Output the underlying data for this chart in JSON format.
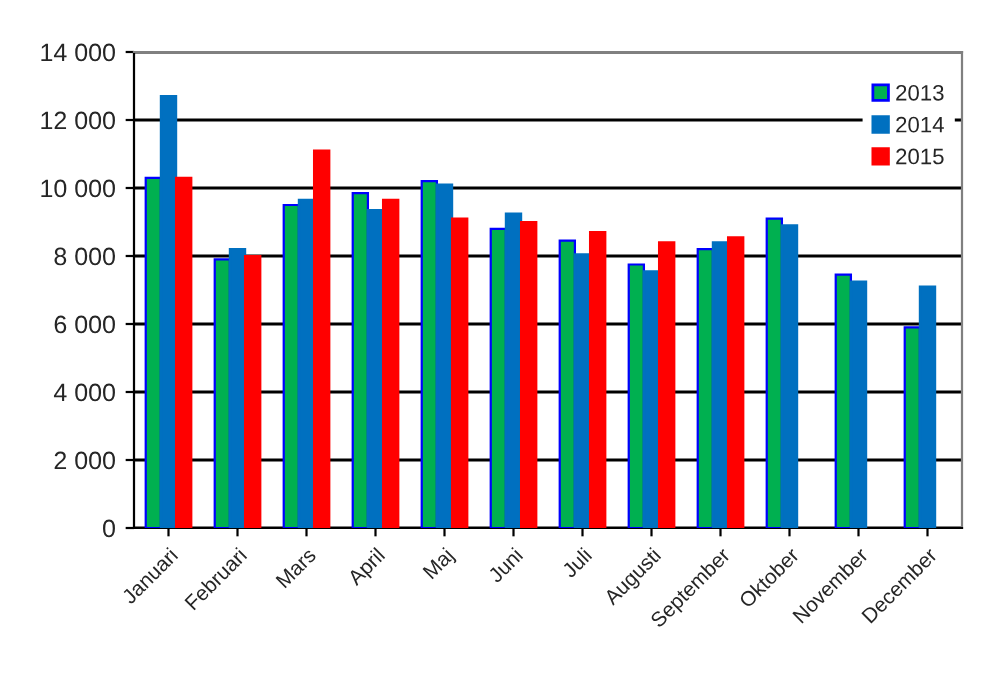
{
  "chart_data": {
    "type": "bar",
    "categories": [
      "Januari",
      "Februari",
      "Mars",
      "April",
      "Maj",
      "Juni",
      "Juli",
      "Augusti",
      "September",
      "Oktober",
      "November",
      "December"
    ],
    "series": [
      {
        "name": "2013",
        "color": "#00b050",
        "values": [
          10300,
          7900,
          9500,
          9850,
          10200,
          8800,
          8450,
          7750,
          8200,
          9100,
          7450,
          5900
        ]
      },
      {
        "name": "2014",
        "color": "#0070c0",
        "values": [
          12700,
          8200,
          9650,
          9350,
          10100,
          9250,
          8050,
          7550,
          8400,
          8900,
          7250,
          7100
        ]
      },
      {
        "name": "2015",
        "color": "#ff0000",
        "values": [
          10300,
          8000,
          11100,
          9650,
          9100,
          9000,
          8700,
          8400,
          8550,
          null,
          null,
          null
        ]
      }
    ],
    "ylim": [
      0,
      14000
    ],
    "yticks": [
      {
        "value": 0,
        "label": "0"
      },
      {
        "value": 2000,
        "label": "2 000"
      },
      {
        "value": 4000,
        "label": "4 000"
      },
      {
        "value": 6000,
        "label": "6 000"
      },
      {
        "value": 8000,
        "label": "8 000"
      },
      {
        "value": 10000,
        "label": "10 000"
      },
      {
        "value": 12000,
        "label": "12 000"
      },
      {
        "value": 14000,
        "label": "14 000"
      }
    ],
    "grid": "y",
    "legend": "top right"
  }
}
